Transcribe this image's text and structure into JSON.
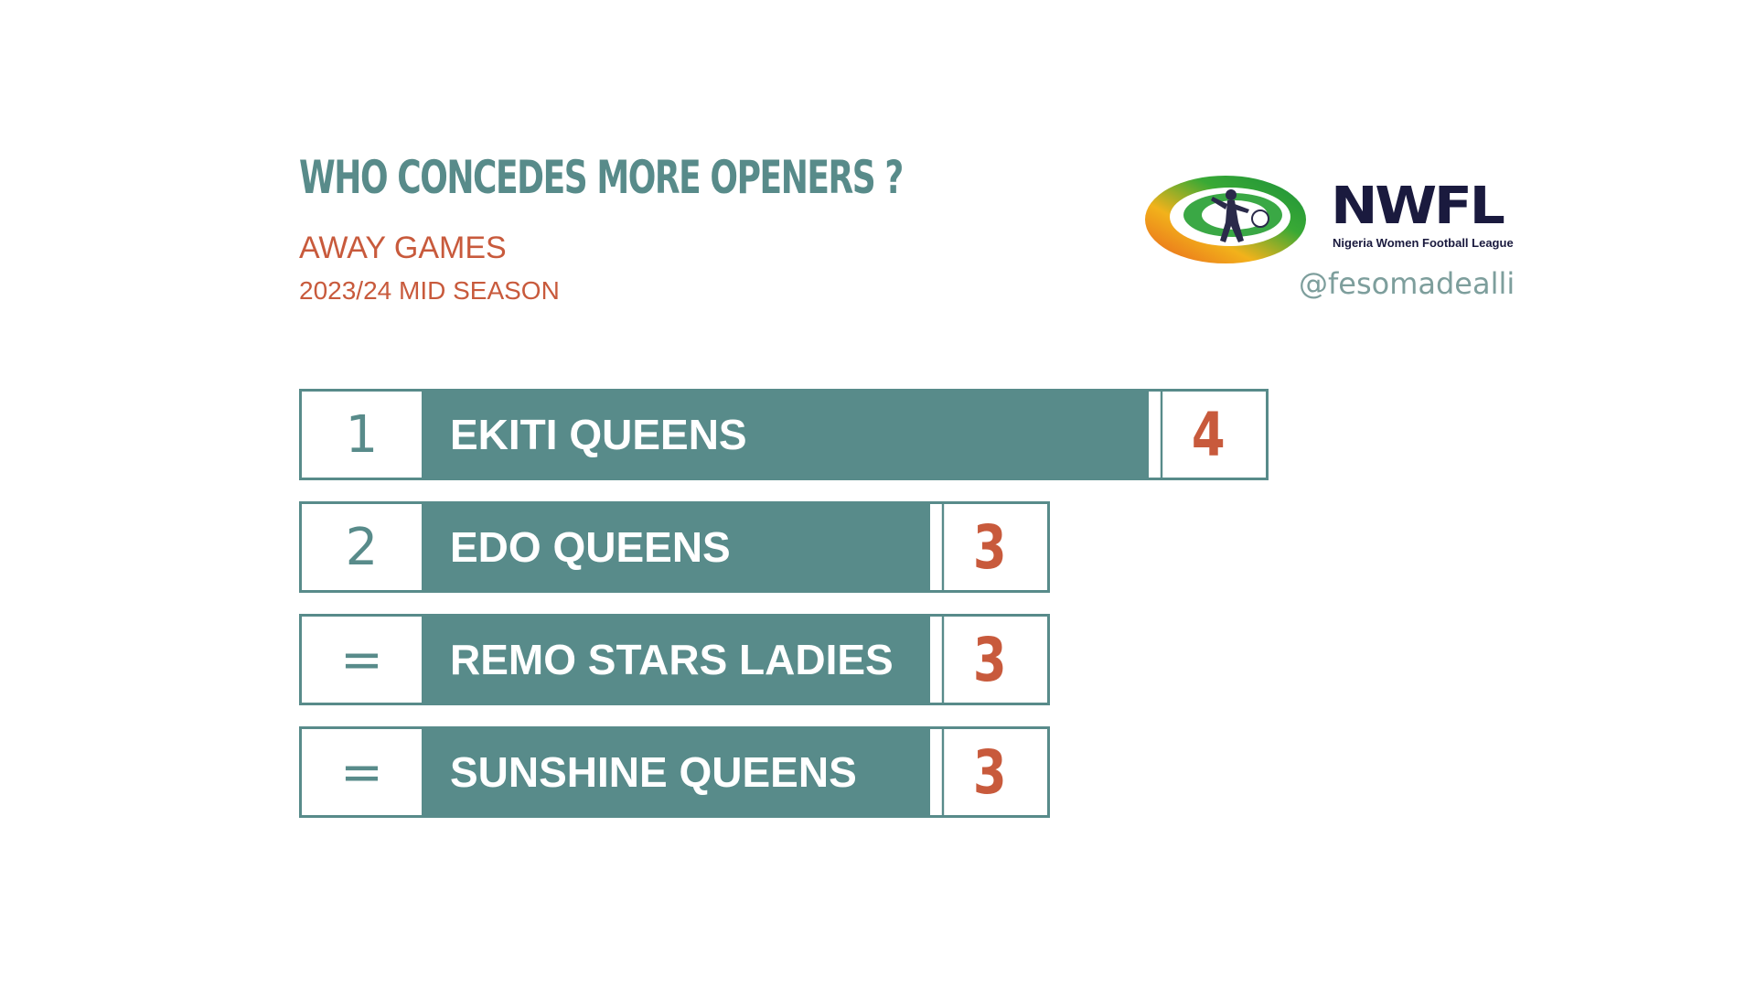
{
  "header": {
    "title": "WHO CONCEDES MORE OPENERS ?",
    "subtitle": "AWAY GAMES",
    "season": "2023/24 MID SEASON"
  },
  "branding": {
    "logo_name": "NWFL",
    "logo_tagline": "Nigeria Women Football League",
    "handle": "@fesomadealli"
  },
  "colors": {
    "teal": "#588b8a",
    "accent": "#c85a3c",
    "navy": "#1a1a3e"
  },
  "chart_data": {
    "type": "bar",
    "title": "WHO CONCEDES MORE OPENERS ?",
    "subtitle": "AWAY GAMES",
    "categories": [
      "EKITI QUEENS",
      "EDO QUEENS",
      "REMO STARS LADIES",
      "SUNSHINE QUEENS"
    ],
    "ranks": [
      "1",
      "2",
      "=",
      "="
    ],
    "values": [
      4,
      3,
      3,
      3
    ],
    "xlabel": "",
    "ylabel": "",
    "orientation": "horizontal"
  }
}
